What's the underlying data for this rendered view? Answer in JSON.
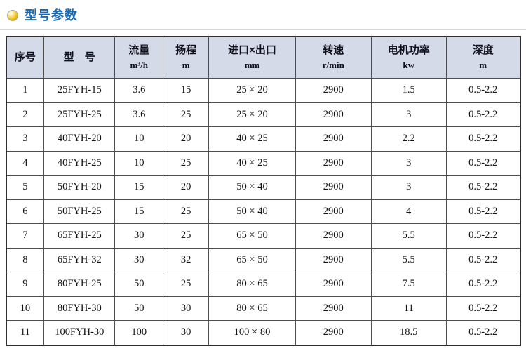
{
  "page": {
    "title": "型号参数",
    "bullet_icon": "gold-ball-icon"
  },
  "colors": {
    "title_blue": "#1a6ab3",
    "header_bg": "#d5dae8",
    "table_border": "#2e2e2e",
    "grid_line": "#4d4d4d",
    "divider_gray": "#d9d9d9",
    "bullet_gold": "#f6d44a"
  },
  "table": {
    "columns": [
      {
        "label": "序号",
        "unit": ""
      },
      {
        "label": "型　号",
        "unit": ""
      },
      {
        "label": "流量",
        "unit": "m³/h"
      },
      {
        "label": "扬程",
        "unit": "m"
      },
      {
        "label": "进口×出口",
        "unit": "mm"
      },
      {
        "label": "转速",
        "unit": "r/min"
      },
      {
        "label": "电机功率",
        "unit": "kw"
      },
      {
        "label": "深度",
        "unit": "m"
      }
    ],
    "rows": [
      [
        "1",
        "25FYH-15",
        "3.6",
        "15",
        "25 × 20",
        "2900",
        "1.5",
        "0.5-2.2"
      ],
      [
        "2",
        "25FYH-25",
        "3.6",
        "25",
        "25 × 20",
        "2900",
        "3",
        "0.5-2.2"
      ],
      [
        "3",
        "40FYH-20",
        "10",
        "20",
        "40 × 25",
        "2900",
        "2.2",
        "0.5-2.2"
      ],
      [
        "4",
        "40FYH-25",
        "10",
        "25",
        "40 × 25",
        "2900",
        "3",
        "0.5-2.2"
      ],
      [
        "5",
        "50FYH-20",
        "15",
        "20",
        "50 × 40",
        "2900",
        "3",
        "0.5-2.2"
      ],
      [
        "6",
        "50FYH-25",
        "15",
        "25",
        "50 × 40",
        "2900",
        "4",
        "0.5-2.2"
      ],
      [
        "7",
        "65FYH-25",
        "30",
        "25",
        "65 × 50",
        "2900",
        "5.5",
        "0.5-2.2"
      ],
      [
        "8",
        "65FYH-32",
        "30",
        "32",
        "65 × 50",
        "2900",
        "5.5",
        "0.5-2.2"
      ],
      [
        "9",
        "80FYH-25",
        "50",
        "25",
        "80 × 65",
        "2900",
        "7.5",
        "0.5-2.2"
      ],
      [
        "10",
        "80FYH-30",
        "50",
        "30",
        "80 × 65",
        "2900",
        "11",
        "0.5-2.2"
      ],
      [
        "11",
        "100FYH-30",
        "100",
        "30",
        "100 × 80",
        "2900",
        "18.5",
        "0.5-2.2"
      ]
    ]
  }
}
